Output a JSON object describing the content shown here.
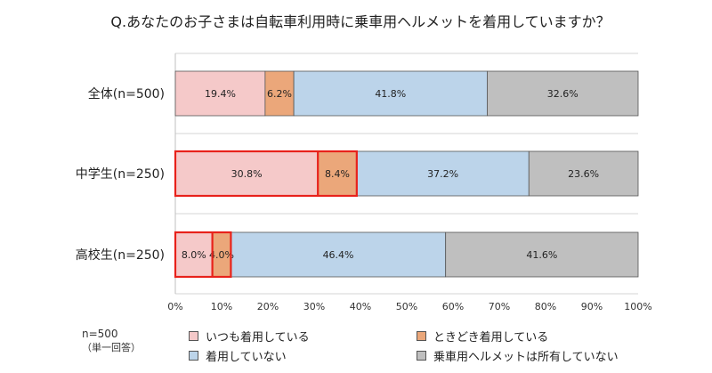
{
  "chart_data": {
    "type": "bar",
    "orientation": "horizontal",
    "stacked": "100%",
    "title": "Q.あなたのお子さまは自転車利用時に乗車用ヘルメットを着用していますか？",
    "categories": [
      "全体(n=500)",
      "中学生(n=250)",
      "高校生(n=250)"
    ],
    "series": [
      {
        "name": "いつも着用している",
        "values": [
          19.4,
          30.8,
          8.0
        ],
        "labels": [
          "19.4%",
          "30.8%",
          "8.0%"
        ],
        "color": "#f5c9c9"
      },
      {
        "name": "ときどき着用している",
        "values": [
          6.2,
          8.4,
          4.0
        ],
        "labels": [
          "6.2%",
          "8.4%",
          "4.0%"
        ],
        "color": "#eba77a"
      },
      {
        "name": "着用していない",
        "values": [
          41.8,
          37.2,
          46.4
        ],
        "labels": [
          "41.8%",
          "37.2%",
          "46.4%"
        ],
        "color": "#bcd4ea"
      },
      {
        "name": "乗車用ヘルメットは所有していない",
        "values": [
          32.6,
          23.6,
          41.6
        ],
        "labels": [
          "32.6%",
          "23.6%",
          "41.6%"
        ],
        "color": "#bfbfbf"
      }
    ],
    "xlim": [
      0,
      100
    ],
    "x_ticks": [
      "0%",
      "10%",
      "20%",
      "30%",
      "40%",
      "50%",
      "60%",
      "70%",
      "80%",
      "90%",
      "100%"
    ],
    "highlight_color": "#e8221b",
    "highlights": [
      {
        "category_index": 1,
        "series": [
          0,
          1
        ]
      },
      {
        "category_index": 2,
        "series": [
          0,
          1
        ]
      }
    ],
    "grid": true,
    "legend": "bottom"
  },
  "note": {
    "line1": "n=500",
    "line2": "（単一回答）"
  }
}
